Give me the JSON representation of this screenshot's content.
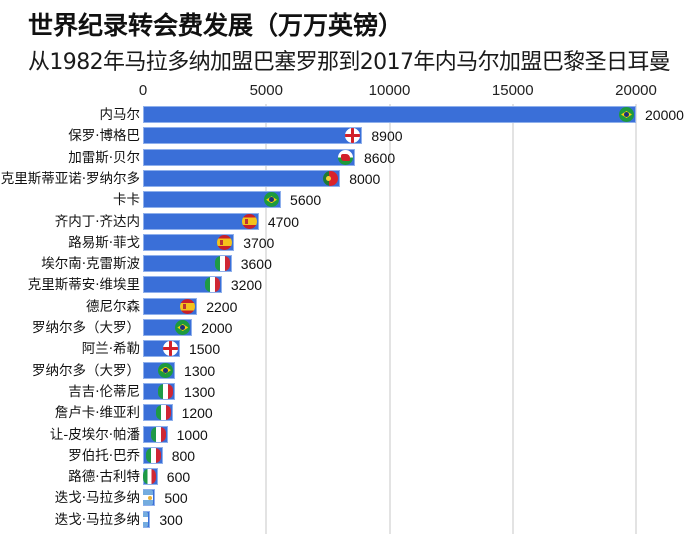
{
  "header": {
    "title": "世界纪录转会费发展（万万英镑）",
    "subtitle": "从1982年马拉多纳加盟巴塞罗那到2017年内马尔加盟巴黎圣日耳曼"
  },
  "axis": {
    "ticks": [
      "0",
      "5000",
      "10000",
      "15000",
      "20000"
    ]
  },
  "colors": {
    "bar": "#3a6fd8",
    "bar_border": "#8fb0ec",
    "grid": "#e3e3e3"
  },
  "chart_data": {
    "type": "bar",
    "orientation": "horizontal",
    "title": "世界纪录转会费发展（万万英镑）",
    "subtitle": "从1982年马拉多纳加盟巴塞罗那到2017年内马尔加盟巴黎圣日耳曼",
    "xlabel": "",
    "ylabel": "",
    "xlim": [
      0,
      20000
    ],
    "xticks": [
      0,
      5000,
      10000,
      15000,
      20000
    ],
    "grid": true,
    "x_axis_position": "top",
    "categories": [
      "内马尔",
      "保罗·博格巴",
      "加雷斯·贝尔",
      "克里斯蒂亚诺·罗纳尔多",
      "卡卡",
      "齐内丁·齐达内",
      "路易斯·菲戈",
      "埃尔南·克雷斯波",
      "克里斯蒂安·维埃里",
      "德尼尔森",
      "罗纳尔多（大罗）",
      "阿兰·希勒",
      "罗纳尔多（大罗）",
      "吉吉·伦蒂尼",
      "詹卢卡·维亚利",
      "让-皮埃尔·帕潘",
      "罗伯托·巴乔",
      "路德·古利特",
      "迭戈·马拉多纳",
      "迭戈·马拉多纳"
    ],
    "values": [
      20000,
      8900,
      8600,
      8000,
      5600,
      4700,
      3700,
      3600,
      3200,
      2200,
      2000,
      1500,
      1300,
      1300,
      1200,
      1000,
      800,
      600,
      500,
      300
    ],
    "flags": [
      "brazil",
      "england",
      "wales",
      "portugal",
      "brazil",
      "france-spain",
      "spain",
      "italy",
      "italy",
      "spain",
      "brazil",
      "england",
      "brazil",
      "italy",
      "italy",
      "italy",
      "italy",
      "italy",
      "argentina",
      "argentina"
    ]
  },
  "rows": [
    {
      "label": "内马尔",
      "value": "20000",
      "flag": "brazil"
    },
    {
      "label": "保罗·博格巴",
      "value": "8900",
      "flag": "england"
    },
    {
      "label": "加雷斯·贝尔",
      "value": "8600",
      "flag": "wales"
    },
    {
      "label": "克里斯蒂亚诺·罗纳尔多",
      "value": "8000",
      "flag": "portugal"
    },
    {
      "label": "卡卡",
      "value": "5600",
      "flag": "brazil"
    },
    {
      "label": "齐内丁·齐达内",
      "value": "4700",
      "flag": "spain"
    },
    {
      "label": "路易斯·菲戈",
      "value": "3700",
      "flag": "spain"
    },
    {
      "label": "埃尔南·克雷斯波",
      "value": "3600",
      "flag": "italy"
    },
    {
      "label": "克里斯蒂安·维埃里",
      "value": "3200",
      "flag": "italy"
    },
    {
      "label": "德尼尔森",
      "value": "2200",
      "flag": "spain"
    },
    {
      "label": "罗纳尔多（大罗）",
      "value": "2000",
      "flag": "brazil"
    },
    {
      "label": "阿兰·希勒",
      "value": "1500",
      "flag": "england"
    },
    {
      "label": "罗纳尔多（大罗）",
      "value": "1300",
      "flag": "brazil"
    },
    {
      "label": "吉吉·伦蒂尼",
      "value": "1300",
      "flag": "italy"
    },
    {
      "label": "詹卢卡·维亚利",
      "value": "1200",
      "flag": "italy"
    },
    {
      "label": "让-皮埃尔·帕潘",
      "value": "1000",
      "flag": "italy"
    },
    {
      "label": "罗伯托·巴乔",
      "value": "800",
      "flag": "italy"
    },
    {
      "label": "路德·古利特",
      "value": "600",
      "flag": "italy"
    },
    {
      "label": "迭戈·马拉多纳",
      "value": "500",
      "flag": "argentina"
    },
    {
      "label": "迭戈·马拉多纳",
      "value": "300",
      "flag": "argentina"
    }
  ]
}
